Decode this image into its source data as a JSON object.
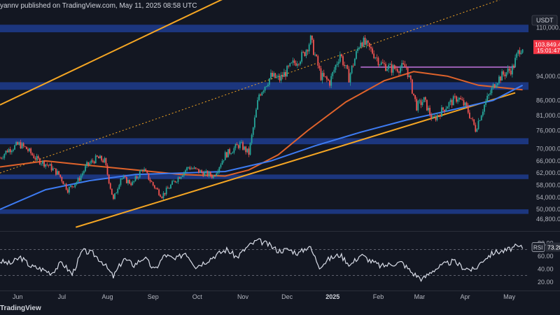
{
  "header": {
    "published_text": "yannv published on TradingView.com, May 11, 2025 08:58 UTC"
  },
  "footer": {
    "brand": "TradingView"
  },
  "colors": {
    "background": "#131722",
    "candle_up": "#26a69a",
    "candle_down": "#ef5350",
    "ma100": "#e0632b",
    "ma200": "#3d7bf2",
    "channel": "#f5a623",
    "zone": "#2962ff",
    "rsi": "#d9dde8",
    "price_tag": "#f23645"
  },
  "chart_data": [
    {
      "type": "candlestick",
      "symbol_quote": "USDT",
      "current_price_label": "103,849.4",
      "countdown_label": "15:01:47",
      "ylim": [
        44000,
        115000
      ],
      "y_ticks": [
        "110,000.0",
        "103,849.4",
        "94,000.0",
        "86,000.0",
        "81,000.0",
        "76,000.0",
        "70,000.0",
        "66,000.0",
        "62,000.0",
        "58,000.0",
        "54,000.0",
        "50,000.0",
        "46,800.0"
      ],
      "x_ticks": [
        "Jun",
        "Jul",
        "Aug",
        "Sep",
        "Oct",
        "Nov",
        "Dec",
        "2025",
        "Feb",
        "Mar",
        "Apr",
        "May"
      ],
      "price_series_points": [
        [
          "2024-05-20",
          67000
        ],
        [
          "2024-05-25",
          69500
        ],
        [
          "2024-06-02",
          71500
        ],
        [
          "2024-06-07",
          70000
        ],
        [
          "2024-06-14",
          66500
        ],
        [
          "2024-06-22",
          64500
        ],
        [
          "2024-06-29",
          61500
        ],
        [
          "2024-07-05",
          56500
        ],
        [
          "2024-07-12",
          59500
        ],
        [
          "2024-07-18",
          64500
        ],
        [
          "2024-07-25",
          67000
        ],
        [
          "2024-07-30",
          66000
        ],
        [
          "2024-08-05",
          53000
        ],
        [
          "2024-08-10",
          60500
        ],
        [
          "2024-08-18",
          58500
        ],
        [
          "2024-08-25",
          63500
        ],
        [
          "2024-09-01",
          58000
        ],
        [
          "2024-09-07",
          54500
        ],
        [
          "2024-09-15",
          59000
        ],
        [
          "2024-09-25",
          64000
        ],
        [
          "2024-10-05",
          62000
        ],
        [
          "2024-10-12",
          61000
        ],
        [
          "2024-10-20",
          68000
        ],
        [
          "2024-10-30",
          71500
        ],
        [
          "2024-11-05",
          68500
        ],
        [
          "2024-11-12",
          88000
        ],
        [
          "2024-11-20",
          94000
        ],
        [
          "2024-11-26",
          93000
        ],
        [
          "2024-12-05",
          98000
        ],
        [
          "2024-12-12",
          101000
        ],
        [
          "2024-12-17",
          106000
        ],
        [
          "2024-12-24",
          94000
        ],
        [
          "2024-12-30",
          92000
        ],
        [
          "2025-01-06",
          101500
        ],
        [
          "2025-01-12",
          93500
        ],
        [
          "2025-01-20",
          106000
        ],
        [
          "2025-01-28",
          102000
        ],
        [
          "2025-02-03",
          98000
        ],
        [
          "2025-02-10",
          96500
        ],
        [
          "2025-02-20",
          97000
        ],
        [
          "2025-02-27",
          84000
        ],
        [
          "2025-03-04",
          86000
        ],
        [
          "2025-03-10",
          79500
        ],
        [
          "2025-03-20",
          84500
        ],
        [
          "2025-03-27",
          87000
        ],
        [
          "2025-04-02",
          83500
        ],
        [
          "2025-04-08",
          76500
        ],
        [
          "2025-04-14",
          84500
        ],
        [
          "2025-04-22",
          92500
        ],
        [
          "2025-04-28",
          95000
        ],
        [
          "2025-05-03",
          96500
        ],
        [
          "2025-05-08",
          103000
        ],
        [
          "2025-05-10",
          103849.4
        ]
      ],
      "ma100_points": [
        [
          "2024-05-20",
          64000
        ],
        [
          "2024-06-20",
          66000
        ],
        [
          "2024-07-20",
          64500
        ],
        [
          "2024-08-20",
          63000
        ],
        [
          "2024-09-20",
          61500
        ],
        [
          "2024-10-20",
          61000
        ],
        [
          "2024-11-05",
          63000
        ],
        [
          "2024-11-25",
          68000
        ],
        [
          "2024-12-15",
          76000
        ],
        [
          "2025-01-10",
          85500
        ],
        [
          "2025-02-05",
          92500
        ],
        [
          "2025-02-25",
          95500
        ],
        [
          "2025-03-20",
          94000
        ],
        [
          "2025-04-10",
          91000
        ],
        [
          "2025-05-10",
          89500
        ]
      ],
      "ma200_points": [
        [
          "2024-05-20",
          50000
        ],
        [
          "2024-06-20",
          56500
        ],
        [
          "2024-07-20",
          59500
        ],
        [
          "2024-08-20",
          61500
        ],
        [
          "2024-09-20",
          62000
        ],
        [
          "2024-10-20",
          62500
        ],
        [
          "2024-11-20",
          66000
        ],
        [
          "2024-12-20",
          71000
        ],
        [
          "2025-01-20",
          75500
        ],
        [
          "2025-02-20",
          79500
        ],
        [
          "2025-03-20",
          82500
        ],
        [
          "2025-04-20",
          86000
        ],
        [
          "2025-05-10",
          91000
        ]
      ],
      "support_zones": [
        [
          108500,
          111000
        ],
        [
          89500,
          92000
        ],
        [
          71500,
          73500
        ],
        [
          60000,
          61500
        ],
        [
          48500,
          50000
        ]
      ],
      "resistance_line": [
        [
          "2025-01-20",
          97000
        ],
        [
          "2025-05-05",
          97000
        ]
      ],
      "channel_upper": [
        [
          "2024-05-20",
          84500
        ],
        [
          "2024-11-20",
          127000
        ]
      ],
      "channel_lower": [
        [
          "2024-07-20",
          45500
        ],
        [
          "2025-05-05",
          88500
        ]
      ],
      "channel_mid_dotted": [
        [
          "2024-05-20",
          62000
        ],
        [
          "2025-05-05",
          121000
        ]
      ]
    },
    {
      "type": "line",
      "name": "RSI",
      "value_label": "73.28",
      "ylim": [
        10,
        90
      ],
      "y_ticks": [
        "80.00",
        "60.00",
        "40.00",
        "20.00"
      ],
      "levels": [
        70,
        30
      ],
      "points": [
        [
          "2024-05-20",
          52
        ],
        [
          "2024-05-27",
          48
        ],
        [
          "2024-06-03",
          58
        ],
        [
          "2024-06-10",
          44
        ],
        [
          "2024-06-17",
          40
        ],
        [
          "2024-06-24",
          34
        ],
        [
          "2024-07-01",
          50
        ],
        [
          "2024-07-08",
          32
        ],
        [
          "2024-07-15",
          68
        ],
        [
          "2024-07-22",
          64
        ],
        [
          "2024-07-29",
          50
        ],
        [
          "2024-08-05",
          28
        ],
        [
          "2024-08-12",
          56
        ],
        [
          "2024-08-19",
          46
        ],
        [
          "2024-08-26",
          58
        ],
        [
          "2024-09-02",
          38
        ],
        [
          "2024-09-09",
          62
        ],
        [
          "2024-09-16",
          54
        ],
        [
          "2024-09-23",
          66
        ],
        [
          "2024-09-30",
          44
        ],
        [
          "2024-10-07",
          52
        ],
        [
          "2024-10-14",
          62
        ],
        [
          "2024-10-21",
          70
        ],
        [
          "2024-10-28",
          58
        ],
        [
          "2024-11-04",
          74
        ],
        [
          "2024-11-11",
          84
        ],
        [
          "2024-11-18",
          78
        ],
        [
          "2024-11-25",
          68
        ],
        [
          "2024-12-02",
          70
        ],
        [
          "2024-12-09",
          64
        ],
        [
          "2024-12-16",
          76
        ],
        [
          "2024-12-23",
          44
        ],
        [
          "2024-12-30",
          56
        ],
        [
          "2025-01-06",
          62
        ],
        [
          "2025-01-13",
          46
        ],
        [
          "2025-01-20",
          62
        ],
        [
          "2025-01-27",
          52
        ],
        [
          "2025-02-03",
          44
        ],
        [
          "2025-02-10",
          48
        ],
        [
          "2025-02-17",
          50
        ],
        [
          "2025-02-24",
          34
        ],
        [
          "2025-03-03",
          24
        ],
        [
          "2025-03-10",
          38
        ],
        [
          "2025-03-17",
          46
        ],
        [
          "2025-03-24",
          52
        ],
        [
          "2025-03-31",
          42
        ],
        [
          "2025-04-07",
          38
        ],
        [
          "2025-04-14",
          56
        ],
        [
          "2025-04-21",
          66
        ],
        [
          "2025-04-28",
          68
        ],
        [
          "2025-05-05",
          74
        ],
        [
          "2025-05-10",
          73.28
        ]
      ]
    }
  ]
}
